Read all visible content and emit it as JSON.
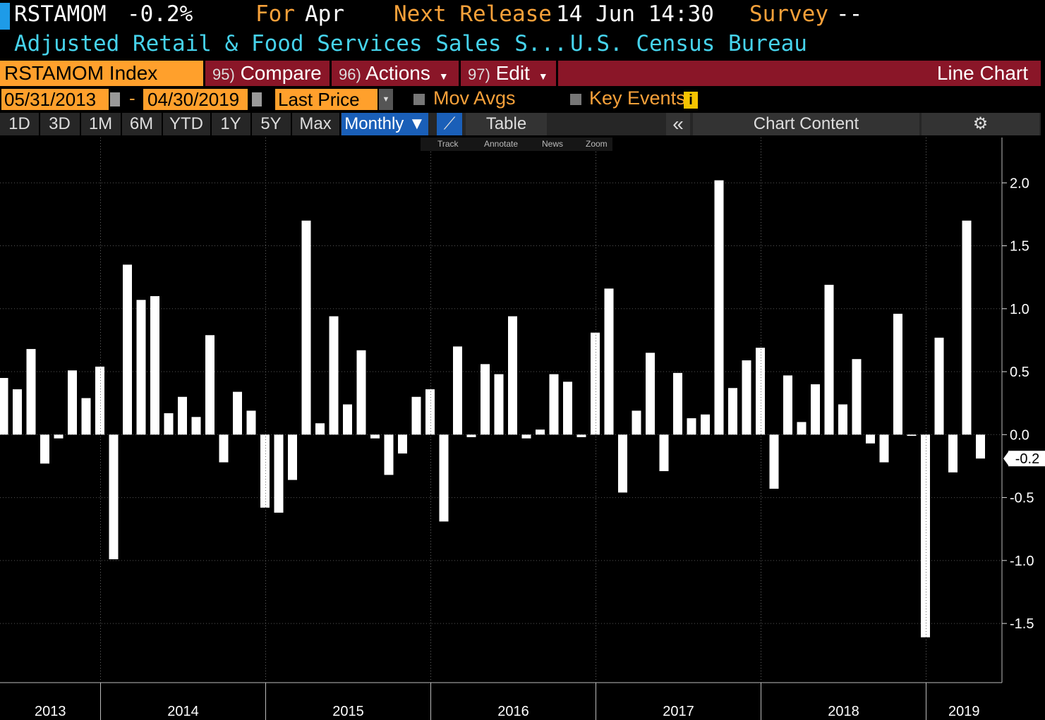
{
  "header": {
    "ticker": "RSTAMOM",
    "change": "-0.2%",
    "for_label": "For",
    "for_value": "Apr",
    "next_label": "Next Release",
    "next_value": "14 Jun 14:30",
    "survey_label": "Survey",
    "survey_value": "--",
    "description": "Adjusted Retail & Food Services Sales S...",
    "source": "U.S. Census Bureau"
  },
  "toolbar": {
    "security": "RSTAMOM Index",
    "menus": [
      {
        "key": "95)",
        "label": "Compare"
      },
      {
        "key": "96)",
        "label": "Actions"
      },
      {
        "key": "97)",
        "label": "Edit"
      }
    ],
    "view": "Line Chart",
    "start_date": "05/31/2013",
    "date_separator": "-",
    "end_date": "04/30/2019",
    "field": "Last Price",
    "mov_avgs": "Mov Avgs",
    "key_events": "Key Events",
    "ranges": [
      "1D",
      "3D",
      "1M",
      "6M",
      "YTD",
      "1Y",
      "5Y",
      "Max"
    ],
    "frequency": "Monthly",
    "table": "Table",
    "chart_content": "Chart Content",
    "tools": [
      "Track",
      "Annotate",
      "News",
      "Zoom"
    ]
  },
  "chart_data": {
    "type": "bar",
    "color": "#ffffff",
    "grid": true,
    "groups": [
      {
        "label": "2013",
        "values": [
          0.45,
          0.36,
          0.68,
          -0.23,
          -0.03,
          0.51,
          0.29,
          0.54
        ]
      },
      {
        "label": "2014",
        "values": [
          -0.99,
          1.35,
          1.07,
          1.1,
          0.17,
          0.3,
          0.14,
          0.79,
          -0.22,
          0.34,
          0.19,
          -0.58
        ]
      },
      {
        "label": "2015",
        "values": [
          -0.62,
          -0.36,
          1.7,
          0.09,
          0.94,
          0.24,
          0.67,
          -0.03,
          -0.32,
          -0.15,
          0.3,
          0.36
        ]
      },
      {
        "label": "2016",
        "values": [
          -0.69,
          0.7,
          -0.02,
          0.56,
          0.48,
          0.94,
          -0.03,
          0.04,
          0.48,
          0.42,
          -0.02,
          0.81
        ]
      },
      {
        "label": "2017",
        "values": [
          1.16,
          -0.46,
          0.19,
          0.65,
          -0.29,
          0.49,
          0.13,
          0.16,
          2.02,
          0.37,
          0.59,
          0.69
        ]
      },
      {
        "label": "2018",
        "values": [
          -0.43,
          0.47,
          0.1,
          0.4,
          1.19,
          0.24,
          0.6,
          -0.07,
          -0.22,
          0.96,
          -0.01,
          -1.61
        ]
      },
      {
        "label": "2019",
        "values": [
          0.77,
          -0.3,
          1.7,
          -0.19
        ]
      }
    ],
    "last_value_label": "-0.2",
    "ylim": [
      -1.97,
      2.36
    ],
    "yticks": [
      -1.5,
      {
        "value": -1,
        "label": "-1.0"
      },
      -0.5,
      {
        "value": 0,
        "label": "0.0"
      },
      0.5,
      {
        "value": 1,
        "label": "1.0"
      },
      1.5,
      {
        "value": 2,
        "label": "2.0"
      }
    ]
  }
}
